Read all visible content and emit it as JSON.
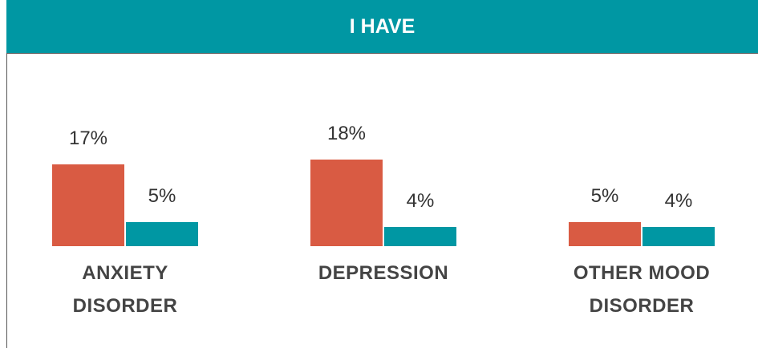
{
  "chart_data": {
    "type": "bar",
    "title": "I HAVE",
    "categories": [
      "ANXIETY DISORDER",
      "DEPRESSION",
      "OTHER MOOD DISORDER"
    ],
    "series": [
      {
        "color": "#d95b43",
        "values": [
          17,
          18,
          5
        ],
        "value_labels": [
          "17%",
          "18%",
          "5%"
        ]
      },
      {
        "color": "#0097a3",
        "values": [
          5,
          4,
          4
        ],
        "value_labels": [
          "5%",
          "4%",
          "4%"
        ]
      }
    ]
  }
}
